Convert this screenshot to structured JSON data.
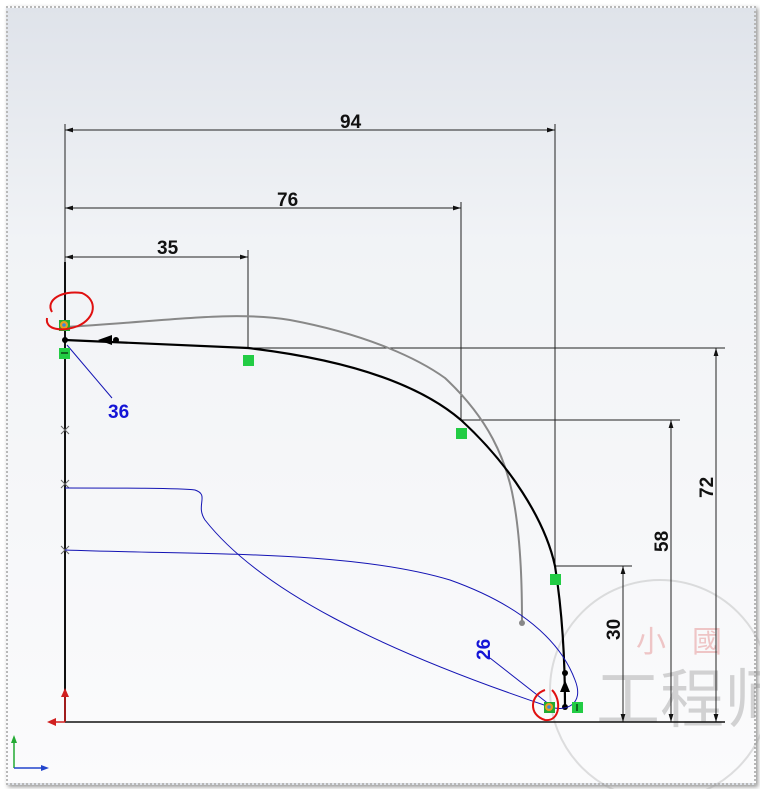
{
  "dimensions": {
    "horizontal": [
      {
        "value": "94"
      },
      {
        "value": "76"
      },
      {
        "value": "35"
      }
    ],
    "vertical": [
      {
        "value": "72"
      },
      {
        "value": "58"
      },
      {
        "value": "30"
      }
    ],
    "spline_labels": [
      {
        "value": "36"
      },
      {
        "value": "26"
      }
    ]
  },
  "watermark": {
    "text": "工程师",
    "seal_left": "小",
    "seal_right": "國"
  },
  "colors": {
    "sketch": "#000000",
    "construction": "#808080",
    "spline_blue": "#1414b4",
    "relation_green": "#22cc44",
    "markup_red": "#e01010",
    "dimension_label_blue": "#1414d6"
  }
}
